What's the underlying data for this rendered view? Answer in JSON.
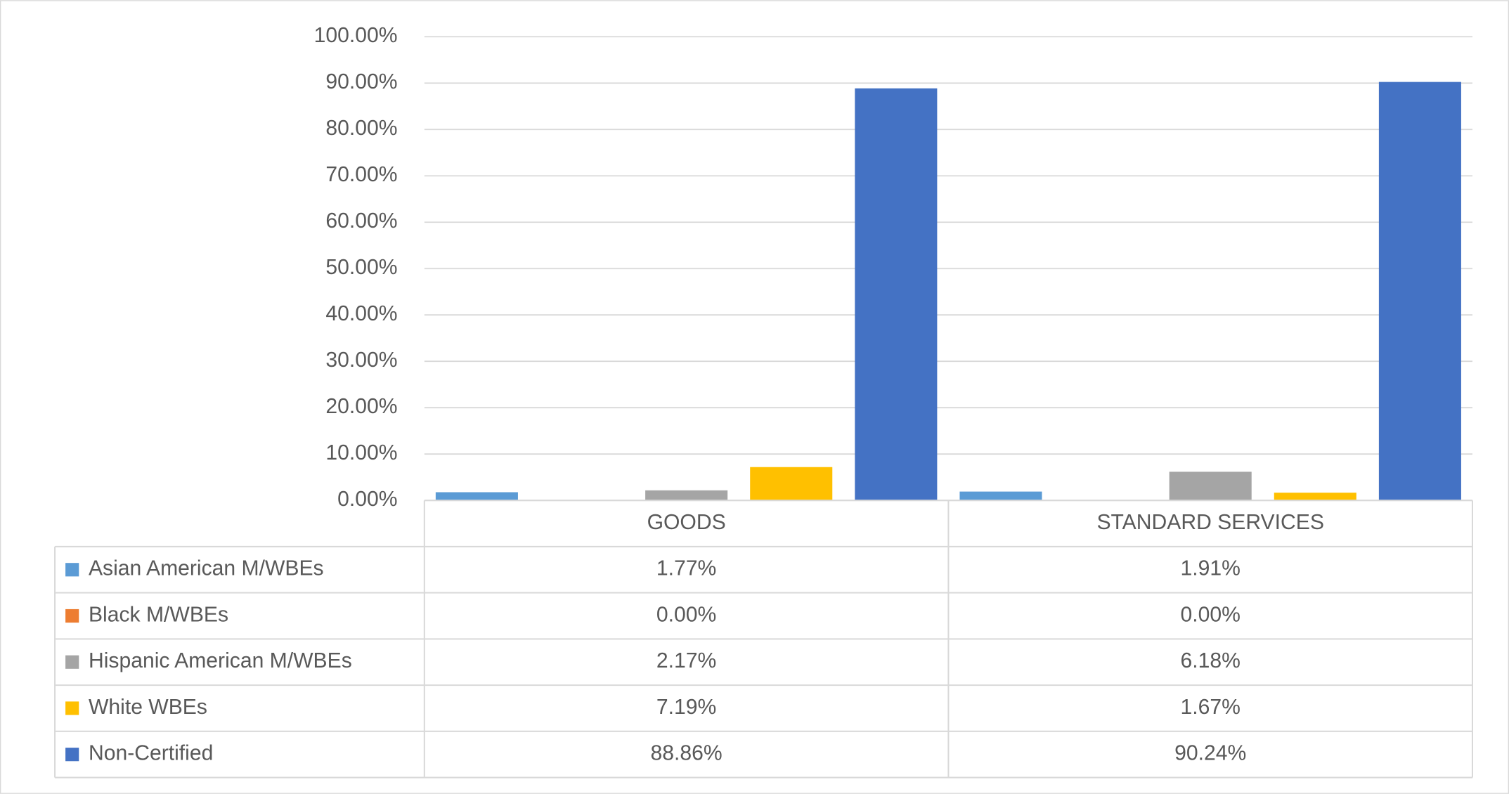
{
  "chart_data": {
    "type": "bar",
    "categories": [
      "GOODS",
      "STANDARD SERVICES"
    ],
    "series": [
      {
        "name": "Asian American M/WBEs",
        "color": "#5b9bd5",
        "values": [
          1.77,
          1.91
        ],
        "value_labels": [
          "1.77%",
          "1.91%"
        ]
      },
      {
        "name": "Black M/WBEs",
        "color": "#ed7d31",
        "values": [
          0,
          0
        ],
        "value_labels": [
          "0.00%",
          "0.00%"
        ]
      },
      {
        "name": "Hispanic American M/WBEs",
        "color": "#a5a5a5",
        "values": [
          2.17,
          6.18
        ],
        "value_labels": [
          "2.17%",
          "6.18%"
        ]
      },
      {
        "name": "White WBEs",
        "color": "#ffc000",
        "values": [
          7.19,
          1.67
        ],
        "value_labels": [
          "7.19%",
          "1.67%"
        ]
      },
      {
        "name": "Non-Certified",
        "color": "#4472c4",
        "values": [
          88.86,
          90.24
        ],
        "value_labels": [
          "88.86%",
          "90.24%"
        ]
      }
    ],
    "ylim": [
      0,
      100
    ],
    "yticks": [
      {
        "value": 0,
        "label": "0.00%"
      },
      {
        "value": 10,
        "label": "10.00%"
      },
      {
        "value": 20,
        "label": "20.00%"
      },
      {
        "value": 30,
        "label": "30.00%"
      },
      {
        "value": 40,
        "label": "40.00%"
      },
      {
        "value": 50,
        "label": "50.00%"
      },
      {
        "value": 60,
        "label": "60.00%"
      },
      {
        "value": 70,
        "label": "70.00%"
      },
      {
        "value": 80,
        "label": "80.00%"
      },
      {
        "value": 90,
        "label": "90.00%"
      },
      {
        "value": 100,
        "label": "100.00%"
      }
    ],
    "grid": true
  }
}
